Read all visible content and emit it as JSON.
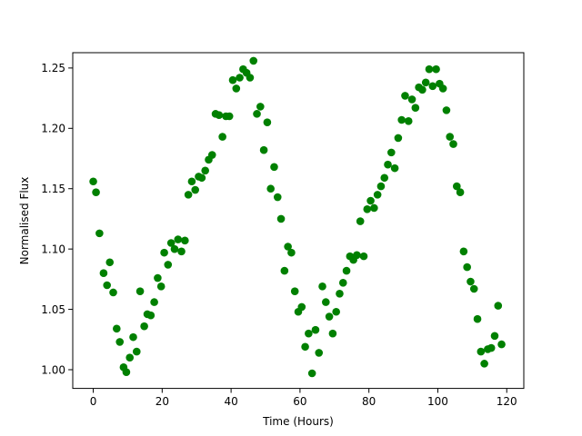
{
  "chart_data": {
    "type": "scatter",
    "xlabel": "Time (Hours)",
    "ylabel": "Normalised Flux",
    "xlim": [
      -5.95,
      124.95
    ],
    "ylim": [
      0.9845,
      1.2627
    ],
    "xticks": [
      0,
      20,
      40,
      60,
      80,
      100,
      120
    ],
    "yticks": [
      1.0,
      1.05,
      1.1,
      1.15,
      1.2,
      1.25
    ],
    "xtick_labels": [
      "0",
      "20",
      "40",
      "60",
      "80",
      "100",
      "120"
    ],
    "ytick_labels": [
      "1.00",
      "1.05",
      "1.10",
      "1.15",
      "1.20",
      "1.25"
    ],
    "grid": false,
    "marker_color": "#008000",
    "series": [
      {
        "points": [
          [
            0.0,
            1.156
          ],
          [
            0.8,
            1.147
          ],
          [
            1.8,
            1.113
          ],
          [
            3.0,
            1.08
          ],
          [
            4.0,
            1.07
          ],
          [
            4.8,
            1.089
          ],
          [
            5.8,
            1.064
          ],
          [
            6.8,
            1.034
          ],
          [
            7.7,
            1.023
          ],
          [
            8.8,
            1.002
          ],
          [
            9.6,
            0.998
          ],
          [
            10.6,
            1.01
          ],
          [
            11.6,
            1.027
          ],
          [
            12.6,
            1.015
          ],
          [
            13.6,
            1.065
          ],
          [
            14.8,
            1.036
          ],
          [
            15.7,
            1.046
          ],
          [
            16.7,
            1.045
          ],
          [
            17.7,
            1.056
          ],
          [
            18.7,
            1.076
          ],
          [
            19.7,
            1.069
          ],
          [
            20.6,
            1.097
          ],
          [
            21.7,
            1.087
          ],
          [
            22.6,
            1.105
          ],
          [
            23.6,
            1.1
          ],
          [
            24.6,
            1.108
          ],
          [
            25.6,
            1.098
          ],
          [
            26.6,
            1.107
          ],
          [
            27.6,
            1.145
          ],
          [
            28.6,
            1.156
          ],
          [
            29.6,
            1.149
          ],
          [
            30.6,
            1.16
          ],
          [
            31.5,
            1.159
          ],
          [
            32.5,
            1.165
          ],
          [
            33.5,
            1.174
          ],
          [
            34.5,
            1.178
          ],
          [
            35.5,
            1.212
          ],
          [
            36.5,
            1.211
          ],
          [
            37.5,
            1.193
          ],
          [
            38.5,
            1.21
          ],
          [
            39.5,
            1.21
          ],
          [
            40.5,
            1.24
          ],
          [
            41.5,
            1.233
          ],
          [
            42.5,
            1.242
          ],
          [
            43.5,
            1.249
          ],
          [
            44.5,
            1.246
          ],
          [
            45.5,
            1.242
          ],
          [
            46.5,
            1.256
          ],
          [
            47.5,
            1.212
          ],
          [
            48.5,
            1.218
          ],
          [
            49.5,
            1.182
          ],
          [
            50.5,
            1.205
          ],
          [
            51.5,
            1.15
          ],
          [
            52.5,
            1.168
          ],
          [
            53.5,
            1.143
          ],
          [
            54.5,
            1.125
          ],
          [
            55.5,
            1.082
          ],
          [
            56.5,
            1.102
          ],
          [
            57.5,
            1.097
          ],
          [
            58.5,
            1.065
          ],
          [
            59.5,
            1.048
          ],
          [
            60.5,
            1.052
          ],
          [
            61.5,
            1.019
          ],
          [
            62.5,
            1.03
          ],
          [
            63.5,
            0.997
          ],
          [
            64.5,
            1.033
          ],
          [
            65.5,
            1.014
          ],
          [
            66.5,
            1.069
          ],
          [
            67.5,
            1.056
          ],
          [
            68.5,
            1.044
          ],
          [
            69.5,
            1.03
          ],
          [
            70.5,
            1.048
          ],
          [
            71.5,
            1.063
          ],
          [
            72.5,
            1.072
          ],
          [
            73.5,
            1.082
          ],
          [
            74.5,
            1.094
          ],
          [
            75.5,
            1.091
          ],
          [
            76.5,
            1.095
          ],
          [
            77.5,
            1.123
          ],
          [
            78.5,
            1.094
          ],
          [
            79.5,
            1.133
          ],
          [
            80.5,
            1.14
          ],
          [
            81.5,
            1.134
          ],
          [
            82.5,
            1.145
          ],
          [
            83.5,
            1.152
          ],
          [
            84.5,
            1.159
          ],
          [
            85.5,
            1.17
          ],
          [
            86.5,
            1.18
          ],
          [
            87.5,
            1.167
          ],
          [
            88.5,
            1.192
          ],
          [
            89.5,
            1.207
          ],
          [
            90.5,
            1.227
          ],
          [
            91.5,
            1.206
          ],
          [
            92.5,
            1.224
          ],
          [
            93.5,
            1.217
          ],
          [
            94.5,
            1.234
          ],
          [
            95.5,
            1.232
          ],
          [
            96.5,
            1.238
          ],
          [
            97.5,
            1.249
          ],
          [
            98.5,
            1.235
          ],
          [
            99.5,
            1.249
          ],
          [
            100.5,
            1.237
          ],
          [
            101.5,
            1.233
          ],
          [
            102.5,
            1.215
          ],
          [
            103.5,
            1.193
          ],
          [
            104.5,
            1.187
          ],
          [
            105.5,
            1.152
          ],
          [
            106.5,
            1.147
          ],
          [
            107.5,
            1.098
          ],
          [
            108.5,
            1.085
          ],
          [
            109.5,
            1.073
          ],
          [
            110.5,
            1.067
          ],
          [
            111.5,
            1.042
          ],
          [
            112.5,
            1.015
          ],
          [
            113.5,
            1.005
          ],
          [
            114.5,
            1.017
          ],
          [
            115.5,
            1.018
          ],
          [
            116.5,
            1.028
          ],
          [
            117.5,
            1.053
          ],
          [
            118.5,
            1.021
          ]
        ]
      }
    ]
  }
}
